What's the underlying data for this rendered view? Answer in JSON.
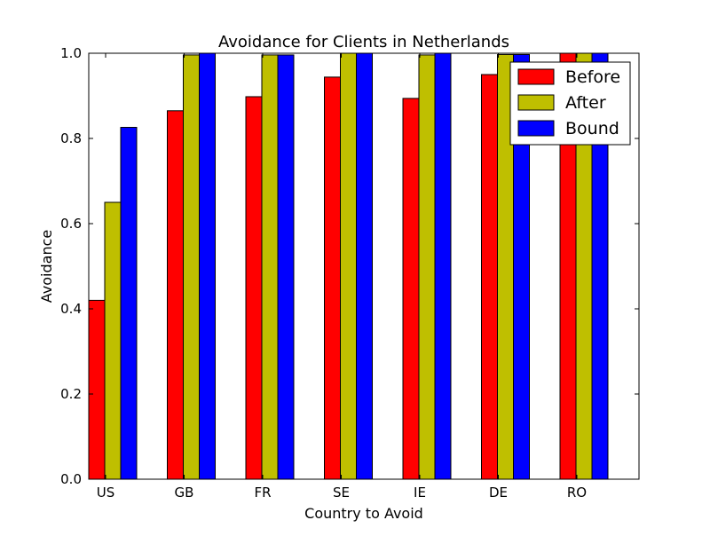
{
  "chart_data": {
    "type": "bar",
    "title": "Avoidance for Clients in Netherlands",
    "xlabel": "Country to Avoid",
    "ylabel": "Avoidance",
    "categories": [
      "US",
      "GB",
      "FR",
      "SE",
      "IE",
      "DE",
      "RO"
    ],
    "ylim": [
      0,
      1.0
    ],
    "yticks": [
      "0.0",
      "0.2",
      "0.4",
      "0.6",
      "0.8",
      "1.0"
    ],
    "grid": false,
    "legend_position": "top-right",
    "series": [
      {
        "name": "Before",
        "color": "#ff0000",
        "values": [
          0.42,
          0.865,
          0.898,
          0.944,
          0.894,
          0.95,
          1.0
        ]
      },
      {
        "name": "After",
        "color": "#bfbf00",
        "values": [
          0.65,
          0.996,
          0.996,
          1.0,
          0.996,
          0.997,
          1.0
        ]
      },
      {
        "name": "Bound",
        "color": "#0000ff",
        "values": [
          0.826,
          1.0,
          0.996,
          1.0,
          1.0,
          0.997,
          1.0
        ]
      }
    ]
  }
}
